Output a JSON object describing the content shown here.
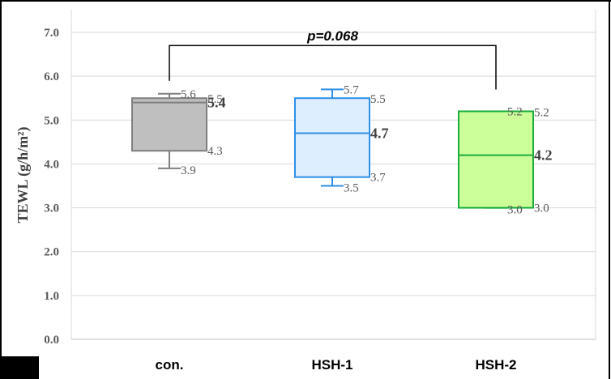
{
  "chart_data": {
    "type": "box",
    "ylabel": "TEWL (g/h/m²)",
    "ylim": [
      0,
      7
    ],
    "yticks": [
      "0.0",
      "1.0",
      "2.0",
      "3.0",
      "4.0",
      "5.0",
      "6.0",
      "7.0"
    ],
    "grid": true,
    "categories": [
      "con.",
      "HSH-1",
      "HSH-2"
    ],
    "series": [
      {
        "category": "con.",
        "min": 3.9,
        "q1": 4.3,
        "median": 5.4,
        "q3": 5.5,
        "max": 5.6,
        "fill": "#bfbfbf",
        "stroke": "#7f7f7f",
        "labels": {
          "max": "5.6",
          "q3": "5.5",
          "median": "5.4",
          "q1": "4.3",
          "min": "3.9"
        }
      },
      {
        "category": "HSH-1",
        "min": 3.5,
        "q1": 3.7,
        "median": 4.7,
        "q3": 5.5,
        "max": 5.7,
        "fill": "#ddeeff",
        "stroke": "#2e8fe6",
        "labels": {
          "max": "5.7",
          "q3": "5.5",
          "median": "4.7",
          "q1": "3.7",
          "min": "3.5"
        }
      },
      {
        "category": "HSH-2",
        "min": 3.0,
        "q1": 3.0,
        "median": 4.2,
        "q3": 5.2,
        "max": 5.2,
        "fill": "#ccff99",
        "stroke": "#1aae3c",
        "labels": {
          "max": "5.2",
          "q3": "5.2",
          "median": "4.2",
          "q1": "3.0",
          "min": "3.0"
        }
      }
    ],
    "annotation": {
      "text": "p=0.068",
      "from": "con.",
      "to": "HSH-2",
      "level": 6.7
    }
  }
}
